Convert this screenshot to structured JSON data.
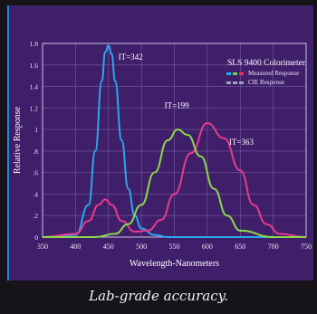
{
  "chart_data": {
    "type": "line",
    "title": "SLS 9400 Colorimeter",
    "xlabel": "Wavelength-Nanometers",
    "ylabel": "Relative Response",
    "xlim": [
      350,
      750
    ],
    "ylim": [
      0,
      1.8
    ],
    "xticks": [
      "350",
      "400",
      "450",
      "500",
      "550",
      "600",
      "650",
      "700",
      "750"
    ],
    "yticks": [
      "0",
      ".2",
      ".4",
      ".6",
      ".8",
      "1",
      "1.2",
      "1.4",
      "1.6",
      "1.8"
    ],
    "grid": true,
    "legend_position": "top-right",
    "legend": [
      {
        "label": "Measured Response",
        "colors": [
          "#19b7e8",
          "#6cd35a",
          "#ff2a55"
        ]
      },
      {
        "label": "CIE Response",
        "colors": [
          "#9aa6b8",
          "#9aa6b8",
          "#9aa6b8"
        ]
      }
    ],
    "series": [
      {
        "color": "#2aa7f0",
        "x": [
          350,
          400,
          420,
          430,
          440,
          445,
          450,
          455,
          460,
          470,
          480,
          490,
          500,
          520,
          540,
          560,
          600,
          750
        ],
        "y": [
          0,
          0.02,
          0.3,
          0.8,
          1.45,
          1.72,
          1.78,
          1.7,
          1.45,
          0.9,
          0.45,
          0.2,
          0.08,
          0.02,
          0,
          0,
          0,
          0
        ]
      },
      {
        "color": "#e83a8c",
        "x": [
          350,
          400,
          420,
          435,
          445,
          455,
          470,
          490,
          510,
          530,
          550,
          575,
          600,
          625,
          650,
          670,
          690,
          710,
          750
        ],
        "y": [
          0,
          0.03,
          0.15,
          0.3,
          0.35,
          0.3,
          0.15,
          0.05,
          0.06,
          0.16,
          0.4,
          0.78,
          1.06,
          0.92,
          0.62,
          0.3,
          0.12,
          0.03,
          0
        ]
      },
      {
        "color": "#8bd94a",
        "x": [
          350,
          430,
          460,
          480,
          500,
          520,
          540,
          555,
          570,
          590,
          610,
          630,
          650,
          700,
          750
        ],
        "y": [
          0,
          0,
          0.03,
          0.12,
          0.3,
          0.6,
          0.9,
          1.0,
          0.95,
          0.75,
          0.45,
          0.2,
          0.06,
          0,
          0
        ]
      }
    ],
    "annotations": [
      {
        "text": "IT=342",
        "x": 465,
        "y": 1.65
      },
      {
        "text": "IT=199",
        "x": 535,
        "y": 1.2
      },
      {
        "text": "IT=363",
        "x": 633,
        "y": 0.86
      }
    ]
  },
  "caption": "Lab-grade accuracy."
}
